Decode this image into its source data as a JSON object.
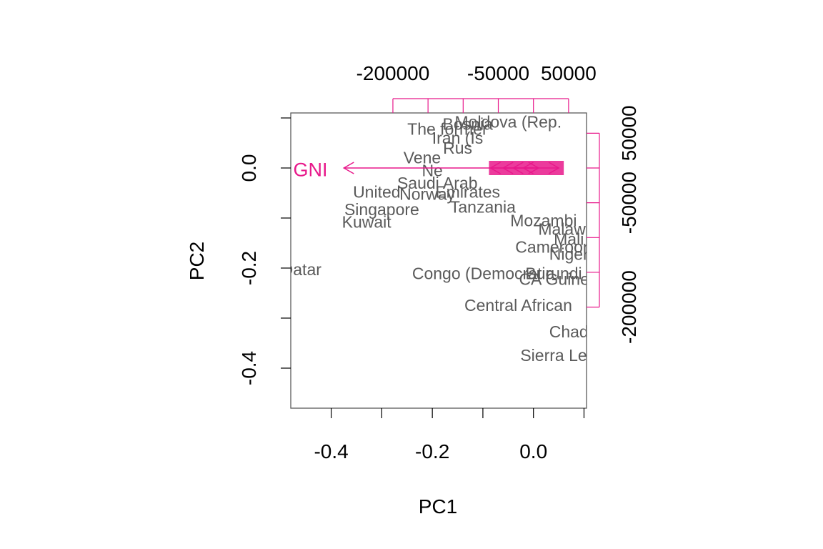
{
  "chart_data": {
    "type": "scatter",
    "subtype": "biplot",
    "xlabel": "PC1",
    "ylabel": "PC2",
    "xlim": [
      -0.48,
      0.105
    ],
    "ylim": [
      -0.48,
      0.11
    ],
    "bottom_ticks": [
      "-0.4",
      "-0.2",
      "0.0"
    ],
    "bottom_tick_values": [
      -0.4,
      -0.3,
      -0.2,
      -0.1,
      0.0,
      0.1
    ],
    "left_ticks": [
      "-0.4",
      "-0.2",
      "0.0"
    ],
    "left_tick_values": [
      -0.4,
      -0.3,
      -0.2,
      -0.1,
      0.0,
      0.1
    ],
    "top_ticks": [
      "-200000",
      "-50000",
      "50000"
    ],
    "top_tick_values": [
      -200000,
      -150000,
      -100000,
      -50000,
      0,
      50000
    ],
    "right_ticks": [
      "50000",
      "-50000",
      "-200000"
    ],
    "right_tick_values": [
      50000,
      0,
      -50000,
      -100000,
      -150000,
      -200000
    ],
    "loading_scale": 1.39e-06,
    "grid": false,
    "legend": "none",
    "colors": {
      "points": "#5a5a5a",
      "loadings": "#e8198b",
      "axis": "#000000",
      "frame": "#5a5a5a"
    },
    "loading_arrows": [
      {
        "name": "GNI",
        "x": -0.375,
        "y": 0.0
      },
      {
        "name": "",
        "x": -0.085,
        "y": 0.0
      },
      {
        "name": "",
        "x": -0.06,
        "y": 0.0
      },
      {
        "name": "",
        "x": -0.04,
        "y": 0.0
      },
      {
        "name": "",
        "x": -0.02,
        "y": 0.0
      },
      {
        "name": "",
        "x": 0.01,
        "y": 0.0
      },
      {
        "name": "",
        "x": 0.05,
        "y": 0.0
      }
    ],
    "loading_labels": [
      {
        "text": "GNI",
        "x": -0.475,
        "y": -0.002
      }
    ],
    "labeled_points": [
      {
        "text": "The former",
        "x": -0.17,
        "y": 0.078
      },
      {
        "text": "Bosnia",
        "x": -0.13,
        "y": 0.088
      },
      {
        "text": "Moldova (Rep.",
        "x": -0.05,
        "y": 0.092
      },
      {
        "text": "Iran (Is",
        "x": -0.15,
        "y": 0.06
      },
      {
        "text": "Rus",
        "x": -0.15,
        "y": 0.04
      },
      {
        "text": "Vene",
        "x": -0.22,
        "y": 0.021
      },
      {
        "text": "Ne",
        "x": -0.2,
        "y": -0.005
      },
      {
        "text": "Saudi Arab",
        "x": -0.19,
        "y": -0.03
      },
      {
        "text": "United",
        "x": -0.31,
        "y": -0.048
      },
      {
        "text": "Norway",
        "x": -0.21,
        "y": -0.052
      },
      {
        "text": "Emirates",
        "x": -0.13,
        "y": -0.048
      },
      {
        "text": "Singapore",
        "x": -0.3,
        "y": -0.083
      },
      {
        "text": "Tanzania",
        "x": -0.1,
        "y": -0.078
      },
      {
        "text": "Kuwait",
        "x": -0.33,
        "y": -0.108
      },
      {
        "text": "Mozambi",
        "x": 0.02,
        "y": -0.105
      },
      {
        "text": "Malawi",
        "x": 0.06,
        "y": -0.122
      },
      {
        "text": "Mali",
        "x": 0.07,
        "y": -0.142
      },
      {
        "text": "Cameroon",
        "x": 0.04,
        "y": -0.158
      },
      {
        "text": "Niger",
        "x": 0.07,
        "y": -0.172
      },
      {
        "text": "Qatar",
        "x": -0.46,
        "y": -0.203
      },
      {
        "text": "Congo (Democratic",
        "x": -0.1,
        "y": -0.211
      },
      {
        "text": "Burundi",
        "x": 0.04,
        "y": -0.211
      },
      {
        "text": "CA Guinea",
        "x": 0.05,
        "y": -0.222
      },
      {
        "text": "Central African",
        "x": -0.03,
        "y": -0.274
      },
      {
        "text": "Chad",
        "x": 0.07,
        "y": -0.327
      },
      {
        "text": "Sierra Le",
        "x": 0.04,
        "y": -0.374
      }
    ]
  }
}
